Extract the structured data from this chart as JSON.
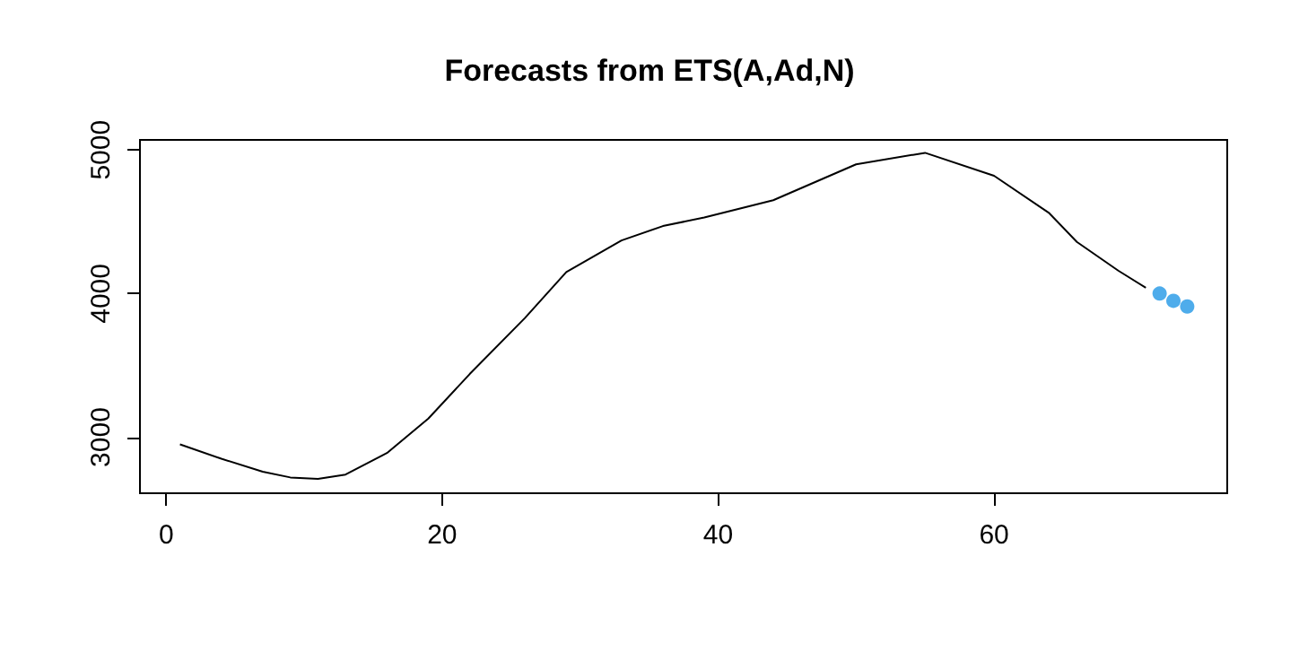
{
  "chart_data": {
    "type": "line",
    "title": "Forecasts from ETS(A,Ad,N)",
    "series": [
      {
        "color": "#000000",
        "marker": "none",
        "x": [
          1,
          4,
          7,
          9,
          11,
          13,
          16,
          19,
          22,
          26,
          29,
          33,
          36,
          39,
          44,
          50,
          55,
          60,
          64,
          66,
          69,
          71
        ],
        "values": [
          2950,
          2850,
          2760,
          2720,
          2710,
          2740,
          2890,
          3130,
          3440,
          3830,
          4150,
          4370,
          4470,
          4530,
          4650,
          4900,
          4980,
          4820,
          4560,
          4360,
          4160,
          4040
        ]
      },
      {
        "type": "scatter",
        "color": "#2297e6",
        "marker": "circle",
        "x": [
          72,
          73,
          74
        ],
        "values": [
          4000,
          3950,
          3910
        ]
      }
    ],
    "xlim": [
      -1.9,
      76.9
    ],
    "xticks": [
      0,
      20,
      40,
      60
    ],
    "ylim": [
      2610,
      5070
    ],
    "yticks": [
      3000,
      4000,
      5000
    ],
    "grid": false
  }
}
